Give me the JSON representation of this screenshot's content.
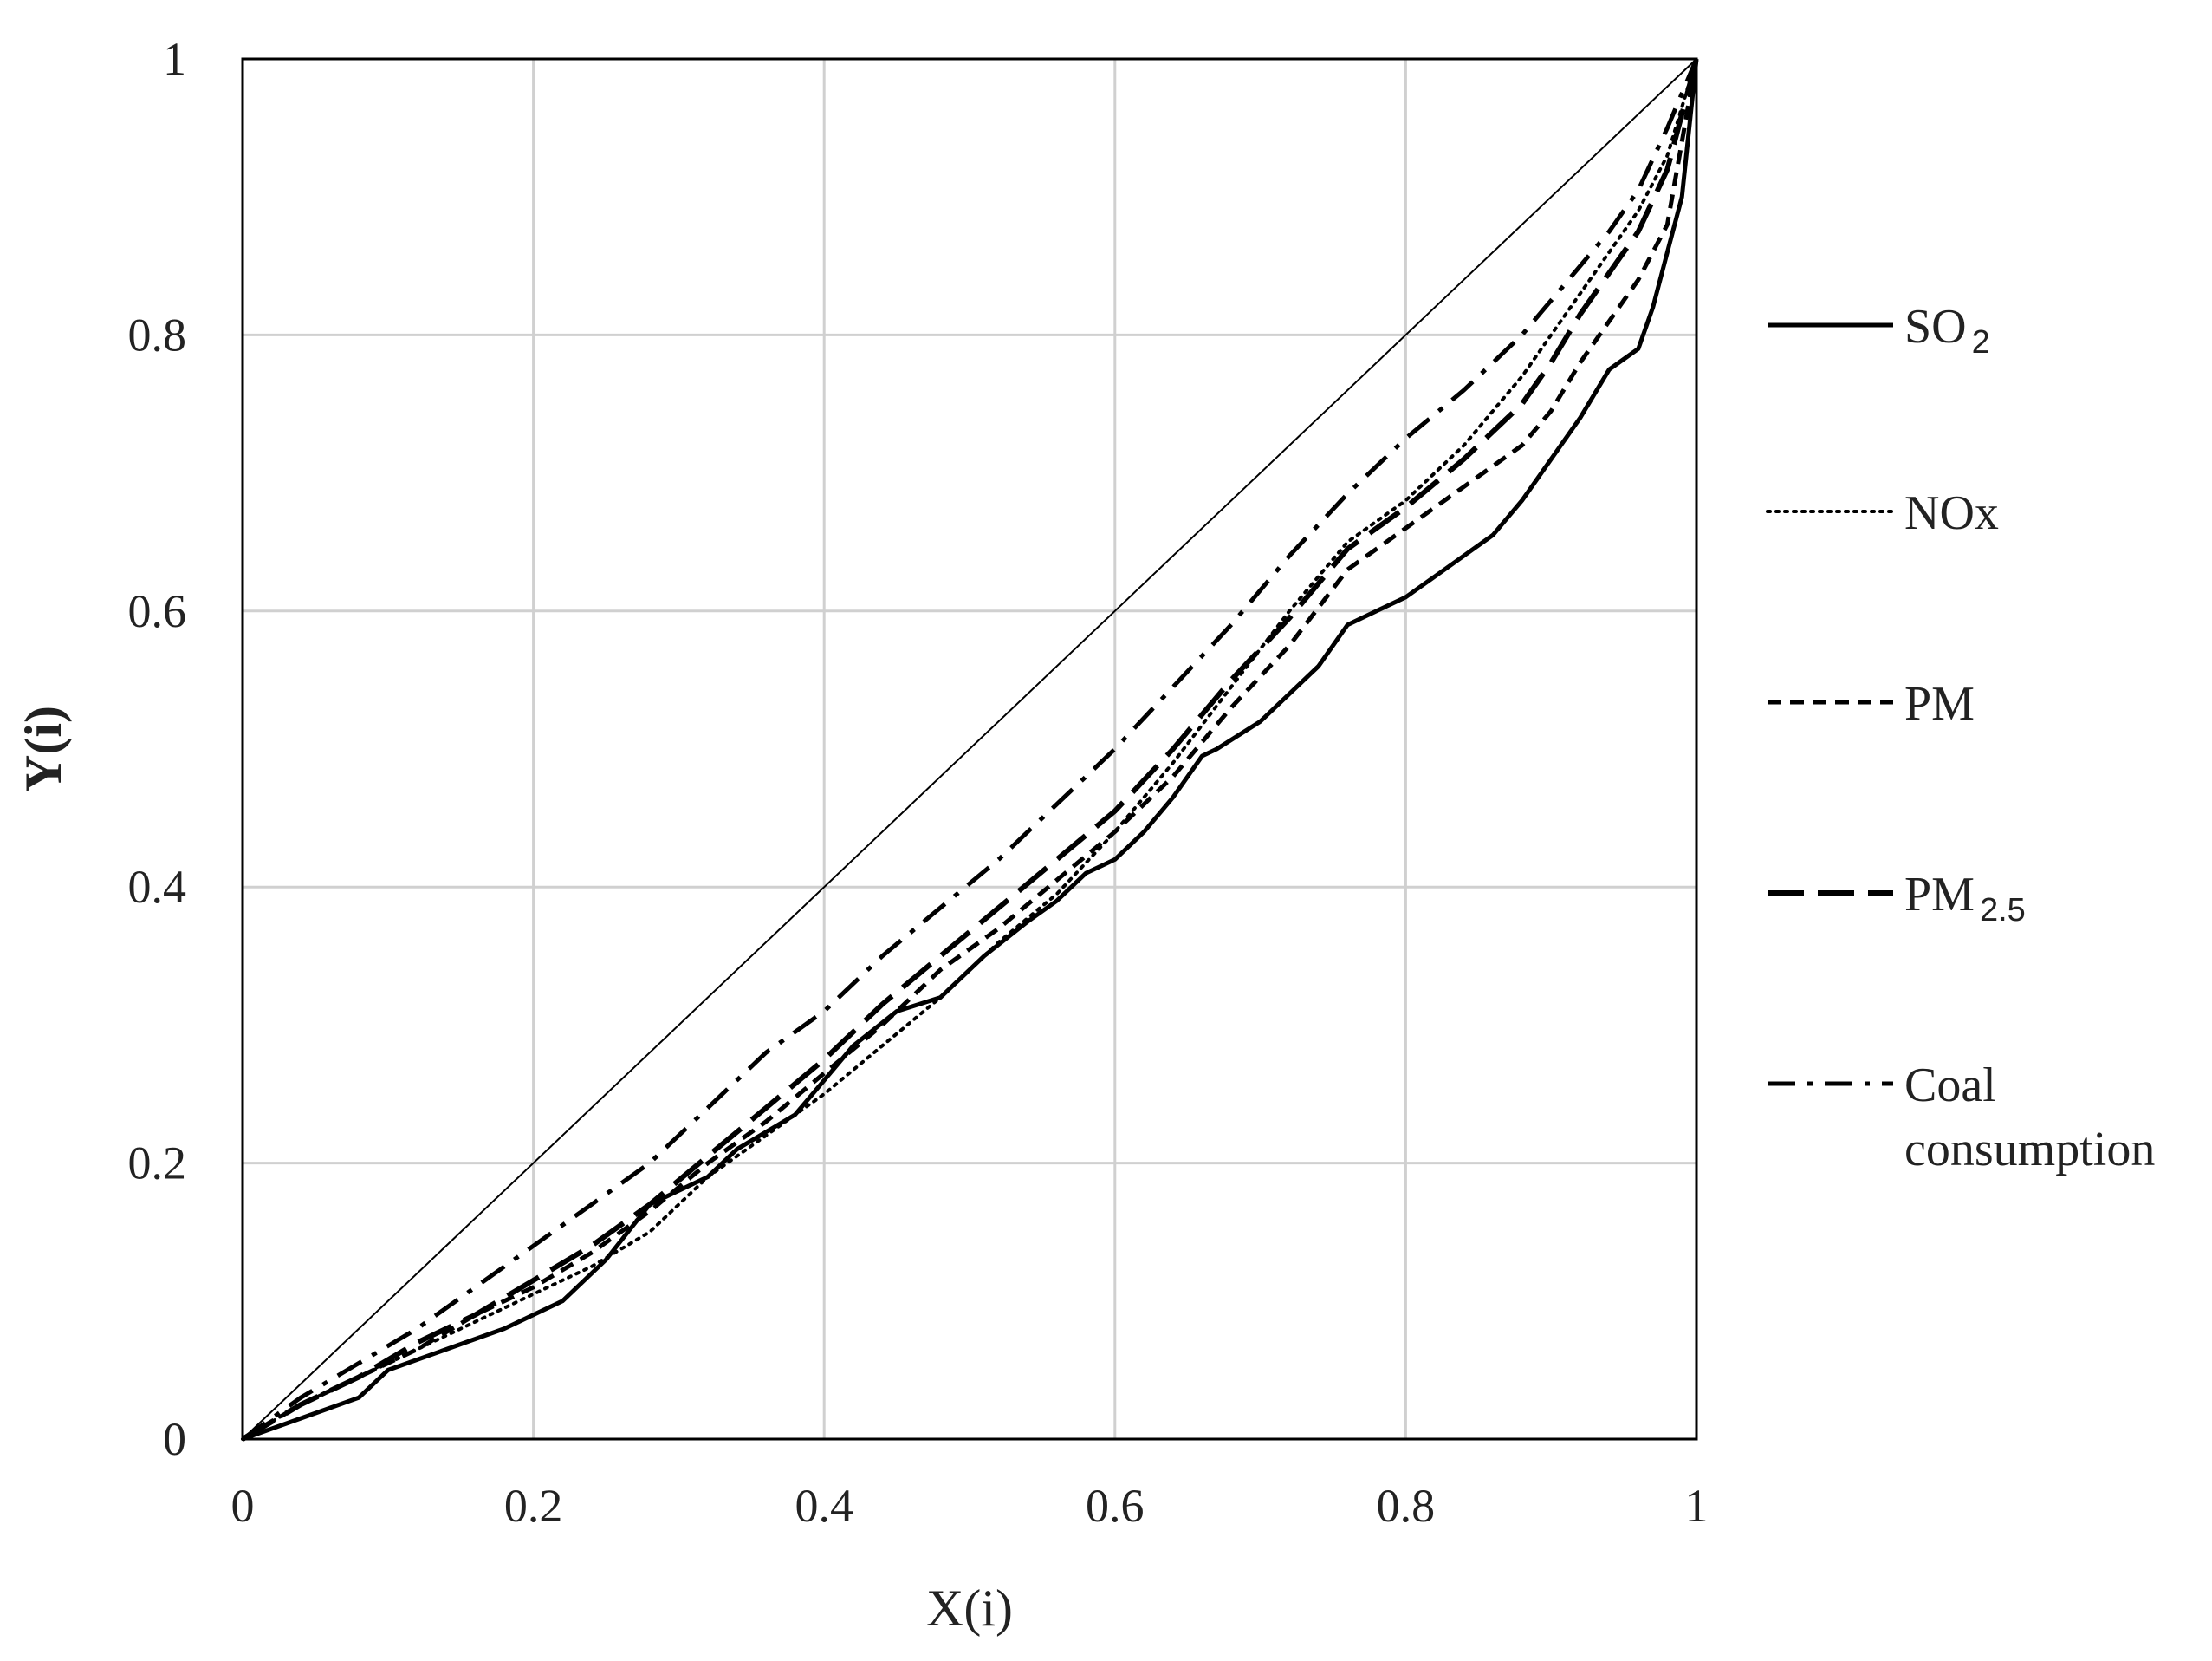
{
  "chart_data": {
    "type": "line",
    "title": "",
    "xlabel": "X(i)",
    "ylabel": "Y(i)",
    "xlim": [
      0,
      1
    ],
    "ylim": [
      0,
      1
    ],
    "x_ticks": [
      "0",
      "0.2",
      "0.4",
      "0.6",
      "0.8",
      "1"
    ],
    "y_ticks": [
      "0",
      "0.2",
      "0.4",
      "0.6",
      "0.8",
      "1"
    ],
    "grid": true,
    "legend_position": "right",
    "equality_line": {
      "x": [
        0,
        1
      ],
      "y": [
        0,
        1
      ]
    },
    "series": [
      {
        "name": "SO",
        "name_sub": "2",
        "style": "solid",
        "x": [
          0,
          0.04,
          0.08,
          0.1,
          0.14,
          0.18,
          0.22,
          0.25,
          0.28,
          0.3,
          0.32,
          0.34,
          0.38,
          0.4,
          0.42,
          0.45,
          0.48,
          0.51,
          0.54,
          0.56,
          0.58,
          0.6,
          0.62,
          0.64,
          0.66,
          0.67,
          0.7,
          0.72,
          0.74,
          0.76,
          0.78,
          0.8,
          0.82,
          0.84,
          0.86,
          0.88,
          0.9,
          0.92,
          0.94,
          0.96,
          0.97,
          0.98,
          0.99,
          1
        ],
        "y": [
          0,
          0.015,
          0.03,
          0.05,
          0.065,
          0.08,
          0.1,
          0.13,
          0.17,
          0.18,
          0.19,
          0.21,
          0.235,
          0.26,
          0.285,
          0.31,
          0.32,
          0.35,
          0.375,
          0.39,
          0.41,
          0.42,
          0.44,
          0.465,
          0.495,
          0.5,
          0.52,
          0.54,
          0.56,
          0.59,
          0.6,
          0.61,
          0.625,
          0.64,
          0.655,
          0.68,
          0.71,
          0.74,
          0.775,
          0.79,
          0.82,
          0.86,
          0.9,
          1
        ]
      },
      {
        "name": "NOx",
        "style": "dotted",
        "x": [
          0,
          0.04,
          0.08,
          0.12,
          0.16,
          0.2,
          0.24,
          0.28,
          0.3,
          0.32,
          0.36,
          0.4,
          0.44,
          0.48,
          0.52,
          0.56,
          0.6,
          0.64,
          0.68,
          0.72,
          0.76,
          0.8,
          0.84,
          0.88,
          0.9,
          0.92,
          0.94,
          0.96,
          0.98,
          1
        ],
        "y": [
          0,
          0.025,
          0.045,
          0.065,
          0.085,
          0.105,
          0.125,
          0.15,
          0.17,
          0.19,
          0.22,
          0.25,
          0.285,
          0.32,
          0.36,
          0.395,
          0.44,
          0.49,
          0.545,
          0.6,
          0.65,
          0.68,
          0.72,
          0.77,
          0.8,
          0.83,
          0.86,
          0.89,
          0.93,
          1
        ]
      },
      {
        "name": "PM",
        "style": "dashed",
        "x": [
          0,
          0.04,
          0.08,
          0.12,
          0.16,
          0.2,
          0.24,
          0.28,
          0.32,
          0.36,
          0.4,
          0.44,
          0.48,
          0.52,
          0.56,
          0.6,
          0.64,
          0.68,
          0.72,
          0.76,
          0.8,
          0.84,
          0.88,
          0.9,
          0.92,
          0.94,
          0.96,
          0.98,
          1
        ],
        "y": [
          0,
          0.025,
          0.045,
          0.065,
          0.09,
          0.11,
          0.135,
          0.165,
          0.2,
          0.23,
          0.265,
          0.3,
          0.34,
          0.37,
          0.405,
          0.44,
          0.48,
          0.53,
          0.575,
          0.63,
          0.66,
          0.69,
          0.72,
          0.745,
          0.78,
          0.81,
          0.84,
          0.88,
          1
        ]
      },
      {
        "name": "PM",
        "name_sub": "2.5",
        "style": "long-dash",
        "x": [
          0,
          0.04,
          0.08,
          0.12,
          0.16,
          0.2,
          0.24,
          0.28,
          0.32,
          0.36,
          0.4,
          0.44,
          0.48,
          0.52,
          0.56,
          0.6,
          0.64,
          0.68,
          0.72,
          0.76,
          0.8,
          0.84,
          0.88,
          0.9,
          0.92,
          0.94,
          0.96,
          0.98,
          1
        ],
        "y": [
          0,
          0.025,
          0.045,
          0.07,
          0.09,
          0.115,
          0.14,
          0.17,
          0.205,
          0.24,
          0.275,
          0.315,
          0.35,
          0.385,
          0.42,
          0.455,
          0.5,
          0.55,
          0.595,
          0.645,
          0.675,
          0.71,
          0.75,
          0.78,
          0.815,
          0.845,
          0.875,
          0.92,
          1
        ]
      },
      {
        "name": "Coal consumption",
        "style": "dash-dot",
        "x": [
          0,
          0.04,
          0.08,
          0.12,
          0.16,
          0.2,
          0.24,
          0.28,
          0.32,
          0.36,
          0.4,
          0.44,
          0.48,
          0.52,
          0.56,
          0.6,
          0.64,
          0.68,
          0.72,
          0.76,
          0.8,
          0.84,
          0.88,
          0.9,
          0.92,
          0.94,
          0.96,
          0.98,
          1
        ],
        "y": [
          0,
          0.03,
          0.055,
          0.08,
          0.11,
          0.14,
          0.17,
          0.2,
          0.24,
          0.28,
          0.31,
          0.35,
          0.385,
          0.42,
          0.46,
          0.5,
          0.545,
          0.59,
          0.64,
          0.685,
          0.725,
          0.76,
          0.8,
          0.825,
          0.85,
          0.875,
          0.905,
          0.95,
          1
        ]
      }
    ]
  }
}
